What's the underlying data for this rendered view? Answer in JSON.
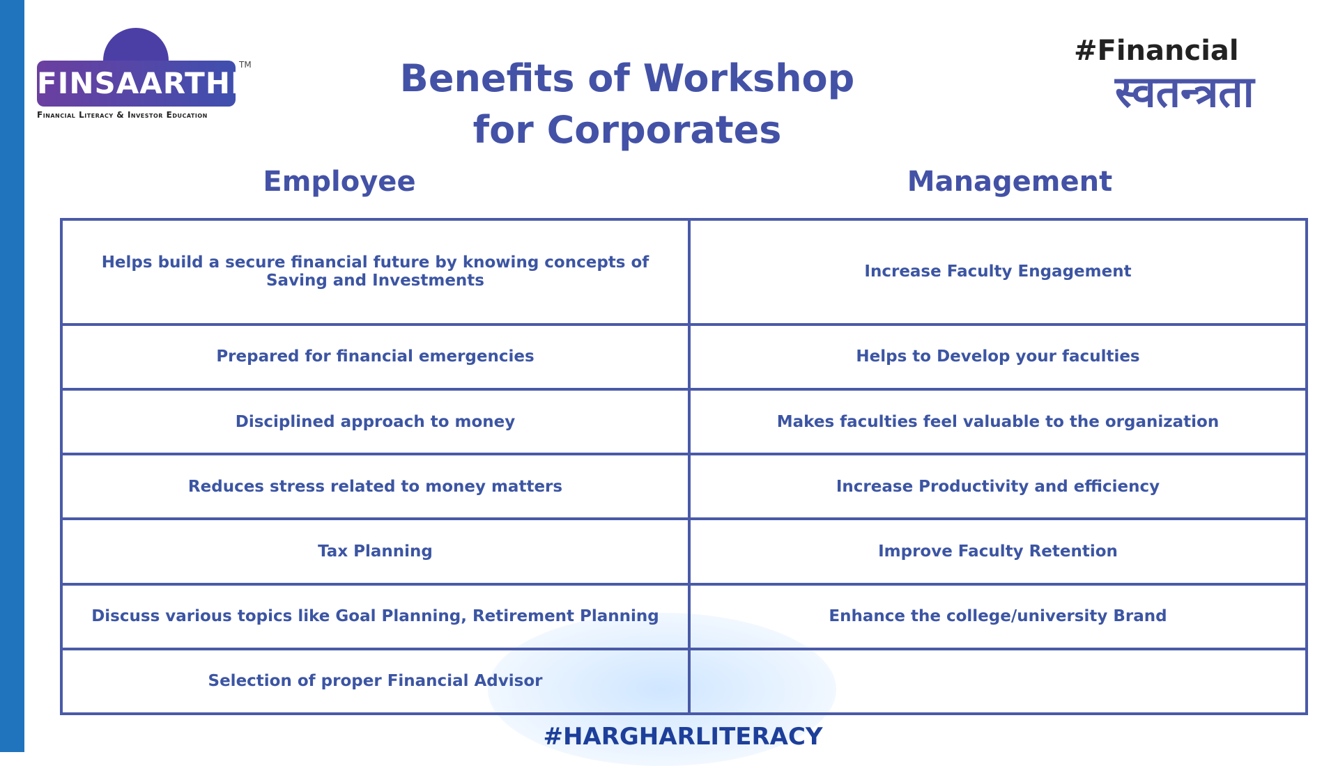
{
  "header": {
    "logo_text": "FINSAARTHI",
    "trademark": "TM",
    "tagline": "Financial Literacy & Investor Education",
    "hashtag": "#Financial",
    "hashtag_script": "स्वतन्त्रता"
  },
  "title": [
    "Benefits of Workshop",
    "for Corporates"
  ],
  "columns": [
    "Employee",
    "Management"
  ],
  "employee": [
    "Helps build a secure financial future by knowing concepts of Saving and Investments",
    "Prepared for financial emergencies",
    "Disciplined approach to money",
    "Reduces stress related to money matters",
    "Tax Planning",
    "Discuss various topics like Goal Planning, Retirement Planning",
    "Selection of proper Financial Advisor"
  ],
  "management": [
    "Increase Faculty Engagement",
    "Helps to Develop your faculties",
    "Makes faculties feel valuable to the organization",
    "Increase Productivity and efficiency",
    "Improve Faculty Retention",
    "Enhance the college/university Brand"
  ],
  "footer": "#HARGHARLITERACY"
}
